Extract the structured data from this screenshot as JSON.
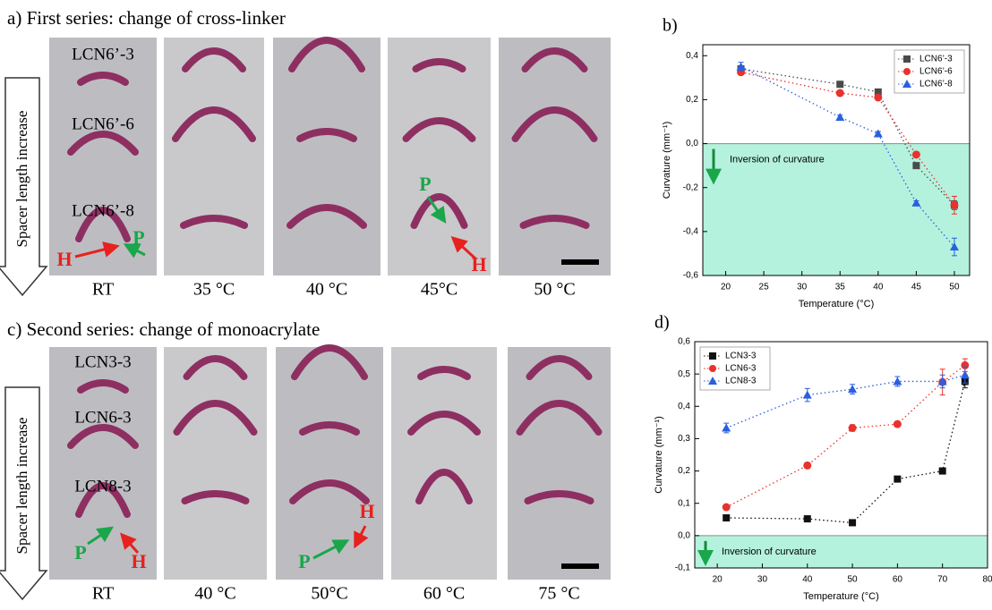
{
  "panel_a": {
    "title": "a) First series: change of cross-linker",
    "arrow_label": "Spacer length increase",
    "row_labels": [
      "LCN6’-3",
      "LCN6’-6",
      "LCN6’-8"
    ],
    "temperatures": [
      "RT",
      "35 °C",
      "40 °C",
      "45°C",
      "50 °C"
    ],
    "markers": [
      {
        "text": "H",
        "color": "#e8211f"
      },
      {
        "text": "P",
        "color": "#1aa64a"
      },
      {
        "text": "P",
        "color": "#1aa64a"
      },
      {
        "text": "H",
        "color": "#e8211f"
      }
    ]
  },
  "panel_c": {
    "title": "c) Second series: change of monoacrylate",
    "arrow_label": "Spacer length increase",
    "row_labels": [
      "LCN3-3",
      "LCN6-3",
      "LCN8-3"
    ],
    "temperatures": [
      "RT",
      "40 °C",
      "50°C",
      "60 °C",
      "75 °C"
    ],
    "markers": [
      {
        "text": "P",
        "color": "#1aa64a"
      },
      {
        "text": "H",
        "color": "#e8211f"
      },
      {
        "text": "H",
        "color": "#e8211f"
      },
      {
        "text": "P",
        "color": "#1aa64a"
      }
    ]
  },
  "chart_data": [
    {
      "type": "line",
      "panel": "b)",
      "x_label": "Temperature (°C)",
      "y_label": "Curvature (mm⁻¹)",
      "annotation": "Inversion of curvature",
      "xlim": [
        17,
        52
      ],
      "xticks": [
        20,
        25,
        30,
        35,
        40,
        45,
        50
      ],
      "ylim": [
        -0.6,
        0.45
      ],
      "yticks": [
        {
          "value": -0.6,
          "label": "-0,6"
        },
        {
          "value": -0.4,
          "label": "-0,4"
        },
        {
          "value": -0.2,
          "label": "-0,2"
        },
        {
          "value": 0,
          "label": "0,0"
        },
        {
          "value": 0.2,
          "label": "0,2"
        },
        {
          "value": 0.4,
          "label": "0,4"
        }
      ],
      "legend": "upper right",
      "shade_color": "#b4f2dd",
      "x": [
        22,
        35,
        40,
        45,
        50
      ],
      "series": [
        {
          "name": "LCN6’-3",
          "color": "#4a4a4a",
          "marker": "square",
          "values": [
            0.34,
            0.27,
            0.235,
            -0.1,
            -0.28
          ],
          "errors": [
            0.01,
            0.01,
            0.01,
            0.01,
            0.02
          ]
        },
        {
          "name": "LCN6’-6",
          "color": "#e8322c",
          "marker": "circle",
          "values": [
            0.325,
            0.23,
            0.21,
            -0.05,
            -0.28
          ],
          "errors": [
            0.01,
            0.01,
            0.01,
            0.01,
            0.04
          ]
        },
        {
          "name": "LCN6’-8",
          "color": "#2a5fe0",
          "marker": "triangle",
          "values": [
            0.35,
            0.12,
            0.045,
            -0.27,
            -0.47
          ],
          "errors": [
            0.02,
            0.01,
            0.01,
            0.01,
            0.04
          ]
        }
      ]
    },
    {
      "type": "line",
      "panel": "d)",
      "x_label": "Temperature (°C)",
      "y_label": "Curvature (mm⁻¹)",
      "annotation": "Inversion of curvature",
      "xlim": [
        15,
        80
      ],
      "xticks": [
        20,
        30,
        40,
        50,
        60,
        70,
        80
      ],
      "ylim": [
        -0.1,
        0.6
      ],
      "yticks": [
        {
          "value": -0.1,
          "label": "-0,1"
        },
        {
          "value": 0,
          "label": "0,0"
        },
        {
          "value": 0.1,
          "label": "0,1"
        },
        {
          "value": 0.2,
          "label": "0,2"
        },
        {
          "value": 0.3,
          "label": "0,3"
        },
        {
          "value": 0.4,
          "label": "0,4"
        },
        {
          "value": 0.5,
          "label": "0,5"
        },
        {
          "value": 0.6,
          "label": "0,6"
        }
      ],
      "legend": "upper left",
      "shade_color": "#b4f2dd",
      "x": [
        22,
        40,
        50,
        60,
        70,
        75
      ],
      "series": [
        {
          "name": "LCN3-3",
          "color": "#111111",
          "marker": "square",
          "values": [
            0.055,
            0.052,
            0.04,
            0.175,
            0.2,
            0.477
          ],
          "errors": [
            0.005,
            0.005,
            0.005,
            0.005,
            0.005,
            0.02
          ]
        },
        {
          "name": "LCN6-3",
          "color": "#e8322c",
          "marker": "circle",
          "values": [
            0.088,
            0.217,
            0.333,
            0.345,
            0.475,
            0.527
          ],
          "errors": [
            0.005,
            0.005,
            0.01,
            0.005,
            0.04,
            0.02
          ]
        },
        {
          "name": "LCN8-3",
          "color": "#2a5fe0",
          "marker": "triangle",
          "values": [
            0.333,
            0.435,
            0.453,
            0.477,
            0.477,
            0.497
          ],
          "errors": [
            0.015,
            0.02,
            0.015,
            0.015,
            0.02,
            0.025
          ]
        }
      ]
    }
  ]
}
